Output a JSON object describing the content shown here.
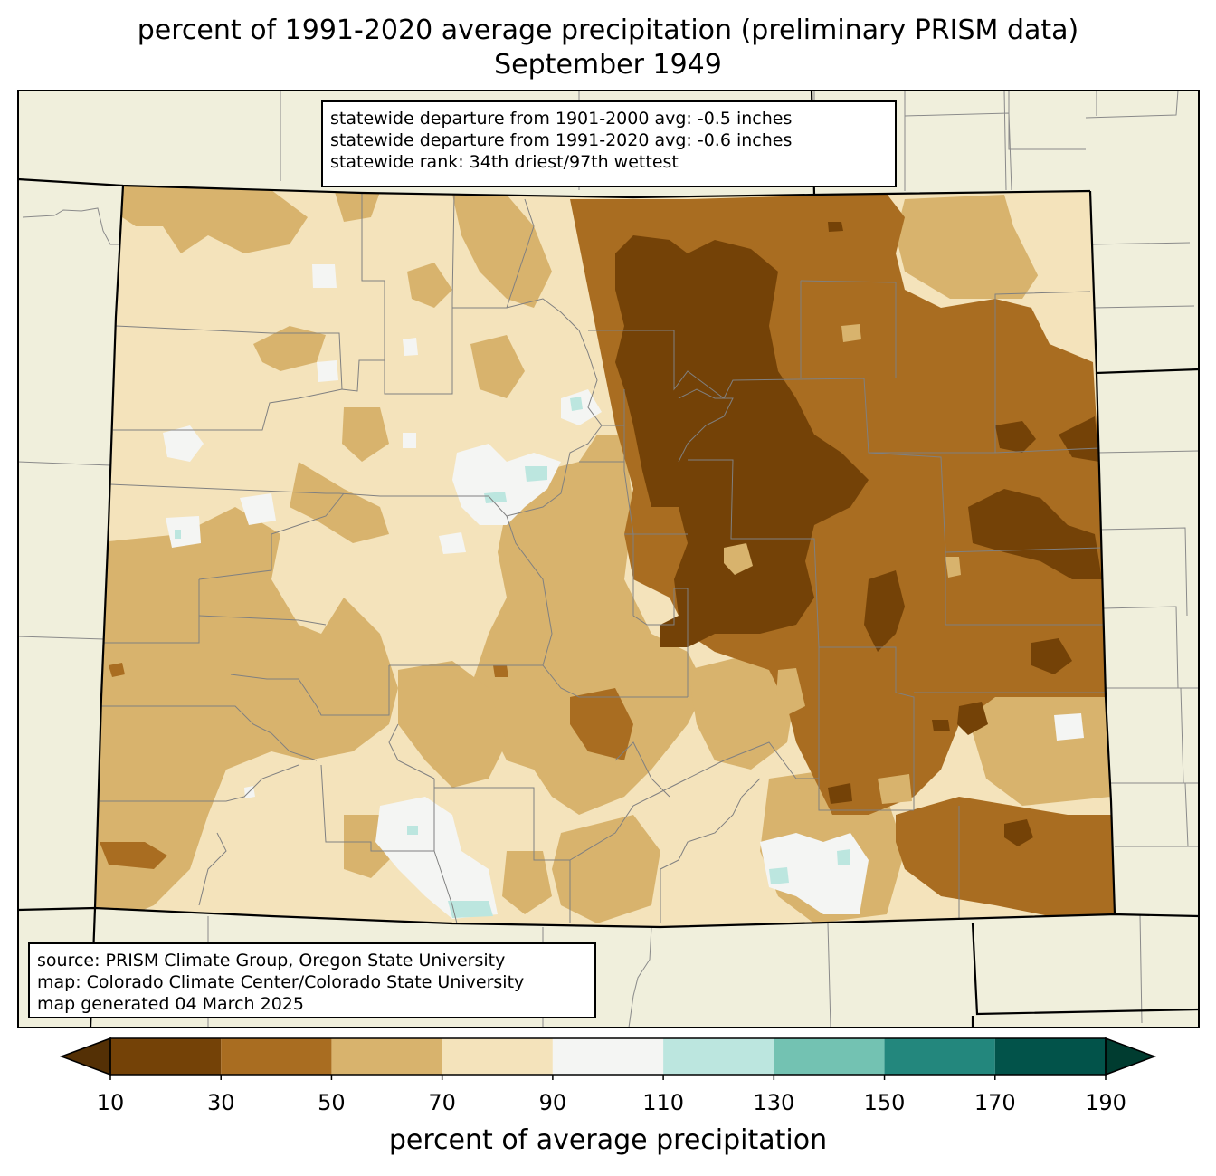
{
  "title": "percent of 1991-2020 average precipitation (preliminary PRISM data)",
  "subtitle": "September 1949",
  "stats": [
    "statewide departure from 1901-2000 avg: -0.5 inches",
    "statewide departure from 1991-2020 avg: -0.6 inches",
    "statewide rank: 34th driest/97th wettest"
  ],
  "source": [
    "source: PRISM Climate Group, Oregon State University",
    "map: Colorado Climate Center/Colorado State University",
    "map generated 04 March 2025"
  ],
  "colorbar": {
    "label": "percent of average precipitation",
    "ticks": [
      "10",
      "30",
      "50",
      "70",
      "90",
      "110",
      "130",
      "150",
      "170",
      "190"
    ],
    "bins": [
      {
        "range": [
          10,
          30
        ],
        "color": "#744207"
      },
      {
        "range": [
          30,
          50
        ],
        "color": "#a96d21"
      },
      {
        "range": [
          50,
          70
        ],
        "color": "#d8b36d"
      },
      {
        "range": [
          70,
          90
        ],
        "color": "#f4e3bb"
      },
      {
        "range": [
          90,
          110
        ],
        "color": "#f4f5f3"
      },
      {
        "range": [
          110,
          130
        ],
        "color": "#bce6df"
      },
      {
        "range": [
          130,
          150
        ],
        "color": "#73c2b2"
      },
      {
        "range": [
          150,
          170
        ],
        "color": "#23877d"
      },
      {
        "range": [
          170,
          190
        ],
        "color": "#02534a"
      }
    ],
    "under_color": "#543005",
    "over_color": "#003c30"
  },
  "background_color": "#f0efdc"
}
